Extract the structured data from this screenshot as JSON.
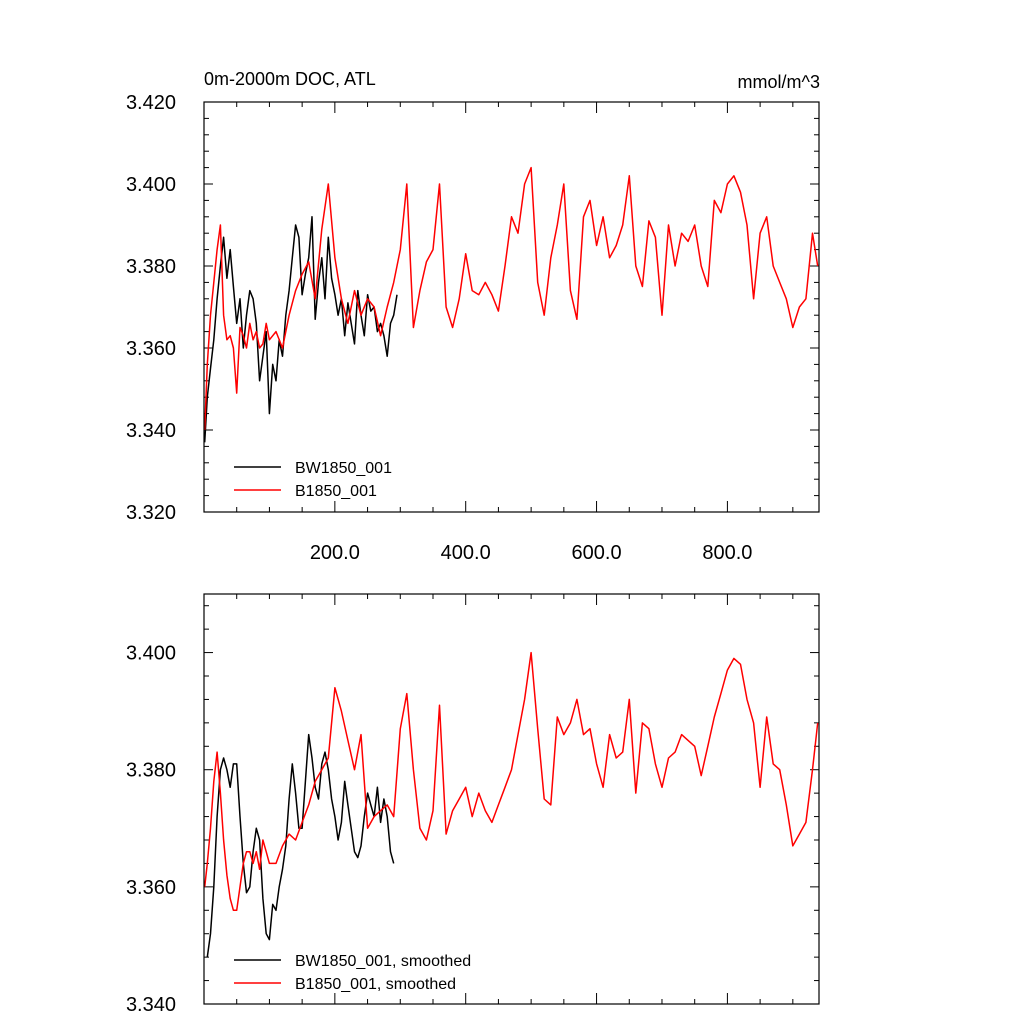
{
  "chart_data": [
    {
      "type": "line",
      "title_left": "0m-2000m DOC, ATL",
      "title_right": "mmol/m^3",
      "xlim": [
        0,
        940
      ],
      "ylim": [
        3.32,
        3.42
      ],
      "y_ticks": [
        3.32,
        3.34,
        3.36,
        3.38,
        3.4,
        3.42
      ],
      "y_tick_labels": [
        "3.320",
        "3.340",
        "3.360",
        "3.380",
        "3.400",
        "3.420"
      ],
      "x_ticks": [
        200,
        400,
        600,
        800
      ],
      "x_tick_labels": [
        "200.0",
        "400.0",
        "600.0",
        "800.0"
      ],
      "legend_position": "bottom-left",
      "series": [
        {
          "name": "BW1850_001",
          "color": "#000000",
          "x": [
            1,
            5,
            10,
            15,
            20,
            25,
            30,
            35,
            40,
            45,
            50,
            55,
            60,
            65,
            70,
            75,
            80,
            85,
            90,
            95,
            100,
            105,
            110,
            115,
            120,
            125,
            130,
            135,
            140,
            145,
            150,
            155,
            160,
            165,
            170,
            175,
            180,
            185,
            190,
            195,
            200,
            205,
            210,
            215,
            220,
            225,
            230,
            235,
            240,
            245,
            250,
            255,
            260,
            265,
            270,
            275,
            280,
            285,
            290,
            295
          ],
          "y": [
            3.337,
            3.348,
            3.355,
            3.362,
            3.372,
            3.38,
            3.387,
            3.377,
            3.384,
            3.375,
            3.366,
            3.372,
            3.36,
            3.368,
            3.374,
            3.372,
            3.366,
            3.352,
            3.358,
            3.364,
            3.344,
            3.356,
            3.352,
            3.362,
            3.358,
            3.368,
            3.374,
            3.382,
            3.39,
            3.387,
            3.373,
            3.378,
            3.382,
            3.392,
            3.367,
            3.376,
            3.382,
            3.372,
            3.387,
            3.377,
            3.373,
            3.368,
            3.372,
            3.363,
            3.371,
            3.366,
            3.361,
            3.374,
            3.368,
            3.363,
            3.373,
            3.369,
            3.37,
            3.364,
            3.366,
            3.363,
            3.358,
            3.366,
            3.368,
            3.373
          ]
        },
        {
          "name": "B1850_001",
          "color": "#ff0000",
          "x": [
            1,
            5,
            10,
            15,
            20,
            25,
            30,
            35,
            40,
            45,
            50,
            55,
            60,
            65,
            70,
            75,
            80,
            85,
            90,
            95,
            100,
            110,
            120,
            130,
            140,
            150,
            160,
            170,
            180,
            190,
            200,
            210,
            220,
            230,
            240,
            250,
            260,
            270,
            280,
            290,
            300,
            310,
            320,
            330,
            340,
            350,
            360,
            370,
            380,
            390,
            400,
            410,
            420,
            430,
            440,
            450,
            460,
            470,
            480,
            490,
            500,
            510,
            520,
            530,
            540,
            550,
            560,
            570,
            580,
            590,
            600,
            610,
            620,
            630,
            640,
            650,
            660,
            670,
            680,
            690,
            700,
            710,
            720,
            730,
            740,
            750,
            760,
            770,
            780,
            790,
            800,
            810,
            820,
            830,
            840,
            850,
            860,
            870,
            880,
            890,
            900,
            910,
            920,
            930,
            938
          ],
          "y": [
            3.34,
            3.356,
            3.368,
            3.376,
            3.384,
            3.39,
            3.368,
            3.362,
            3.363,
            3.36,
            3.349,
            3.365,
            3.363,
            3.36,
            3.366,
            3.362,
            3.364,
            3.36,
            3.361,
            3.366,
            3.362,
            3.364,
            3.36,
            3.368,
            3.374,
            3.378,
            3.381,
            3.372,
            3.389,
            3.4,
            3.382,
            3.372,
            3.366,
            3.374,
            3.368,
            3.372,
            3.37,
            3.363,
            3.37,
            3.376,
            3.384,
            3.4,
            3.365,
            3.374,
            3.381,
            3.384,
            3.4,
            3.37,
            3.365,
            3.372,
            3.383,
            3.374,
            3.373,
            3.376,
            3.373,
            3.369,
            3.38,
            3.392,
            3.388,
            3.4,
            3.404,
            3.376,
            3.368,
            3.382,
            3.39,
            3.4,
            3.374,
            3.367,
            3.392,
            3.396,
            3.385,
            3.392,
            3.382,
            3.385,
            3.39,
            3.402,
            3.38,
            3.375,
            3.391,
            3.387,
            3.368,
            3.39,
            3.38,
            3.388,
            3.386,
            3.39,
            3.38,
            3.375,
            3.396,
            3.393,
            3.4,
            3.402,
            3.398,
            3.39,
            3.372,
            3.388,
            3.392,
            3.38,
            3.376,
            3.372,
            3.365,
            3.37,
            3.372,
            3.388,
            3.38
          ]
        }
      ]
    },
    {
      "type": "line",
      "xlim": [
        0,
        940
      ],
      "ylim": [
        3.34,
        3.41
      ],
      "y_ticks": [
        3.34,
        3.36,
        3.38,
        3.4
      ],
      "y_tick_labels": [
        "3.340",
        "3.360",
        "3.380",
        "3.400"
      ],
      "x_ticks": [
        200,
        400,
        600,
        800
      ],
      "legend_position": "bottom-left",
      "series": [
        {
          "name": "BW1850_001, smoothed",
          "color": "#000000",
          "x": [
            5,
            10,
            15,
            20,
            25,
            30,
            35,
            40,
            45,
            50,
            55,
            60,
            65,
            70,
            75,
            80,
            85,
            90,
            95,
            100,
            105,
            110,
            115,
            120,
            125,
            130,
            135,
            140,
            145,
            150,
            155,
            160,
            165,
            170,
            175,
            180,
            185,
            190,
            195,
            200,
            205,
            210,
            215,
            220,
            225,
            230,
            235,
            240,
            245,
            250,
            255,
            260,
            265,
            270,
            275,
            280,
            285,
            290
          ],
          "y": [
            3.348,
            3.352,
            3.36,
            3.372,
            3.38,
            3.382,
            3.38,
            3.377,
            3.381,
            3.381,
            3.372,
            3.364,
            3.359,
            3.36,
            3.366,
            3.37,
            3.368,
            3.358,
            3.352,
            3.351,
            3.357,
            3.356,
            3.36,
            3.363,
            3.367,
            3.375,
            3.381,
            3.376,
            3.37,
            3.37,
            3.378,
            3.386,
            3.382,
            3.377,
            3.375,
            3.381,
            3.383,
            3.38,
            3.375,
            3.372,
            3.368,
            3.371,
            3.378,
            3.374,
            3.37,
            3.366,
            3.365,
            3.367,
            3.372,
            3.376,
            3.374,
            3.372,
            3.377,
            3.371,
            3.375,
            3.372,
            3.366,
            3.364
          ]
        },
        {
          "name": "B1850_001, smoothed",
          "color": "#ff0000",
          "x": [
            1,
            5,
            10,
            15,
            20,
            25,
            30,
            35,
            40,
            45,
            50,
            55,
            60,
            65,
            70,
            75,
            80,
            85,
            90,
            95,
            100,
            110,
            120,
            130,
            140,
            150,
            160,
            170,
            180,
            190,
            200,
            210,
            220,
            230,
            240,
            250,
            260,
            270,
            280,
            290,
            300,
            310,
            320,
            330,
            340,
            350,
            360,
            370,
            380,
            390,
            400,
            410,
            420,
            430,
            440,
            450,
            460,
            470,
            480,
            490,
            500,
            510,
            520,
            530,
            540,
            550,
            560,
            570,
            580,
            590,
            600,
            610,
            620,
            630,
            640,
            650,
            660,
            670,
            680,
            690,
            700,
            710,
            720,
            730,
            740,
            750,
            760,
            770,
            780,
            790,
            800,
            810,
            820,
            830,
            840,
            850,
            860,
            870,
            880,
            890,
            900,
            910,
            920,
            930,
            938
          ],
          "y": [
            3.36,
            3.364,
            3.37,
            3.378,
            3.383,
            3.376,
            3.368,
            3.362,
            3.358,
            3.356,
            3.356,
            3.36,
            3.364,
            3.366,
            3.366,
            3.364,
            3.366,
            3.363,
            3.368,
            3.366,
            3.364,
            3.364,
            3.367,
            3.369,
            3.368,
            3.371,
            3.374,
            3.378,
            3.38,
            3.382,
            3.394,
            3.39,
            3.385,
            3.38,
            3.386,
            3.37,
            3.372,
            3.373,
            3.374,
            3.372,
            3.387,
            3.393,
            3.38,
            3.37,
            3.368,
            3.373,
            3.391,
            3.369,
            3.373,
            3.375,
            3.377,
            3.372,
            3.376,
            3.373,
            3.371,
            3.374,
            3.377,
            3.38,
            3.386,
            3.392,
            3.4,
            3.387,
            3.375,
            3.374,
            3.389,
            3.386,
            3.388,
            3.392,
            3.386,
            3.387,
            3.381,
            3.377,
            3.386,
            3.382,
            3.383,
            3.392,
            3.376,
            3.388,
            3.387,
            3.381,
            3.377,
            3.382,
            3.383,
            3.386,
            3.385,
            3.384,
            3.379,
            3.384,
            3.389,
            3.393,
            3.397,
            3.399,
            3.398,
            3.392,
            3.388,
            3.377,
            3.389,
            3.381,
            3.38,
            3.374,
            3.367,
            3.369,
            3.371,
            3.38,
            3.388
          ]
        }
      ]
    }
  ]
}
